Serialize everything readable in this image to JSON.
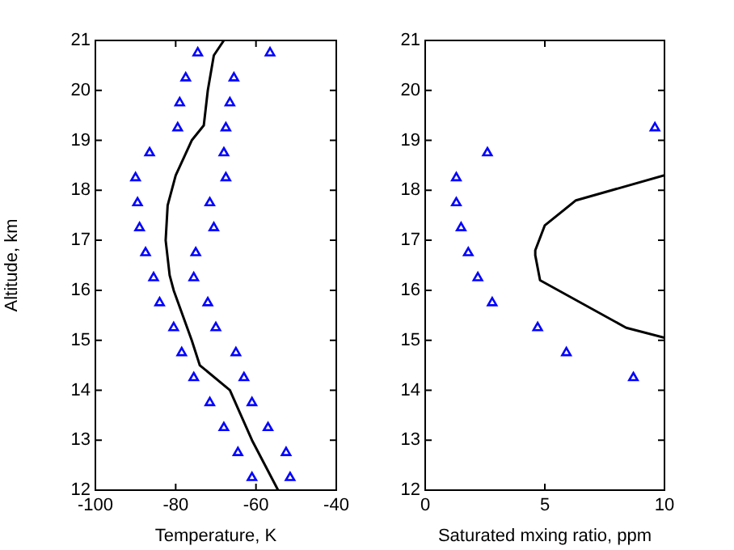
{
  "chart_data": [
    {
      "type": "scatter",
      "xlabel": "Temperature, K",
      "ylabel": "Altitude, km",
      "xlim": [
        -100,
        -40
      ],
      "ylim": [
        12,
        21
      ],
      "xticks": [
        -100,
        -80,
        -60,
        -40
      ],
      "yticks": [
        12,
        13,
        14,
        15,
        16,
        17,
        18,
        19,
        20,
        21
      ],
      "series": [
        {
          "type": "scatter",
          "marker": "triangle",
          "color": "#0000ff",
          "x": [
            -61,
            -64.5,
            -68,
            -71.5,
            -75.5,
            -78.5,
            -80.5,
            -84,
            -85.5,
            -87.5,
            -89,
            -89.5,
            -90,
            -86.5,
            -79.5,
            -79,
            -77.5,
            -74.5
          ],
          "values": [
            12.25,
            12.75,
            13.25,
            13.75,
            14.25,
            14.75,
            15.25,
            15.75,
            16.25,
            16.75,
            17.25,
            17.75,
            18.25,
            18.75,
            19.25,
            19.75,
            20.25,
            20.75
          ]
        },
        {
          "type": "scatter",
          "marker": "triangle",
          "color": "#0000ff",
          "x": [
            -51.5,
            -52.5,
            -57,
            -61,
            -63,
            -65,
            -70,
            -72,
            -75.5,
            -75,
            -70.5,
            -71.5,
            -67.5,
            -68,
            -67.5,
            -66.5,
            -65.5,
            -56.5
          ],
          "values": [
            12.25,
            12.75,
            13.25,
            13.75,
            14.25,
            14.75,
            15.25,
            15.75,
            16.25,
            16.75,
            17.25,
            17.75,
            18.25,
            18.75,
            19.25,
            19.75,
            20.25,
            20.75
          ]
        },
        {
          "type": "line",
          "marker": "none",
          "color": "#000000",
          "x": [
            -54.5,
            -61,
            -66.5,
            -74,
            -76,
            -80.5,
            -81.5,
            -82.5,
            -82,
            -80,
            -76,
            -73,
            -72,
            -70.5,
            -68
          ],
          "values": [
            12,
            13,
            14,
            14.5,
            15,
            16,
            16.3,
            17,
            17.7,
            18.3,
            19,
            19.3,
            20,
            20.7,
            21
          ]
        }
      ]
    },
    {
      "type": "scatter",
      "xlabel": "Saturated mxing ratio, ppm",
      "xlim": [
        0,
        10
      ],
      "ylim": [
        12,
        21
      ],
      "xticks": [
        0,
        5,
        10
      ],
      "yticks": [
        12,
        13,
        14,
        15,
        16,
        17,
        18,
        19,
        20,
        21
      ],
      "series": [
        {
          "type": "scatter",
          "marker": "triangle",
          "color": "#0000ff",
          "x": [
            8.7,
            5.9,
            4.7,
            2.8,
            2.2,
            1.8,
            1.5,
            1.3,
            1.3,
            2.6,
            9.6
          ],
          "values": [
            14.25,
            14.75,
            15.25,
            15.75,
            16.25,
            16.75,
            17.25,
            17.75,
            18.25,
            18.75,
            19.25
          ]
        },
        {
          "type": "line",
          "marker": "none",
          "color": "#000000",
          "x": [
            10,
            8.4,
            4.8,
            4.6,
            4.6,
            5,
            6.3,
            10
          ],
          "values": [
            15.05,
            15.25,
            16.2,
            16.7,
            16.8,
            17.3,
            17.8,
            18.3
          ]
        }
      ]
    }
  ]
}
